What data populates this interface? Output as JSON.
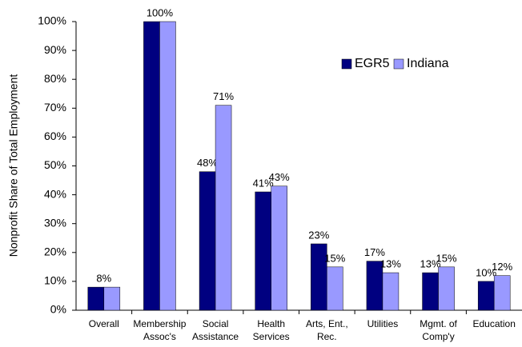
{
  "chart_data": {
    "type": "bar",
    "y_label": "Nonprofit Share of Total Employment",
    "categories": [
      [
        "Overall"
      ],
      [
        "Membership",
        "Assoc's"
      ],
      [
        "Social",
        "Assistance"
      ],
      [
        "Health",
        "Services"
      ],
      [
        "Arts, Ent.,",
        "Rec."
      ],
      [
        "Utilities"
      ],
      [
        "Mgmt. of",
        "Comp'y"
      ],
      [
        "Education"
      ]
    ],
    "series": [
      {
        "name": "EGR5",
        "color": "#000080",
        "values": [
          8,
          100,
          48,
          41,
          23,
          17,
          13,
          10
        ],
        "value_labels": [
          "8%",
          "100%",
          "48%",
          "41%",
          "23%",
          "17%",
          "13%",
          "10%"
        ]
      },
      {
        "name": "Indiana",
        "color": "#9999ff",
        "values": [
          8,
          100,
          71,
          43,
          15,
          13,
          15,
          12
        ],
        "value_labels": [
          null,
          null,
          "71%",
          "43%",
          "15%",
          "13%",
          "15%",
          "12%"
        ]
      }
    ],
    "ylim": [
      0,
      100
    ],
    "yticks": [
      {
        "value": 0,
        "label": "0%"
      },
      {
        "value": 10,
        "label": "10%"
      },
      {
        "value": 20,
        "label": "20%"
      },
      {
        "value": 30,
        "label": "30%"
      },
      {
        "value": 40,
        "label": "40%"
      },
      {
        "value": 50,
        "label": "50%"
      },
      {
        "value": 60,
        "label": "60%"
      },
      {
        "value": 70,
        "label": "70%"
      },
      {
        "value": 80,
        "label": "80%"
      },
      {
        "value": 90,
        "label": "90%"
      },
      {
        "value": 100,
        "label": "100%"
      }
    ],
    "grid": false,
    "legend": "upper right"
  }
}
